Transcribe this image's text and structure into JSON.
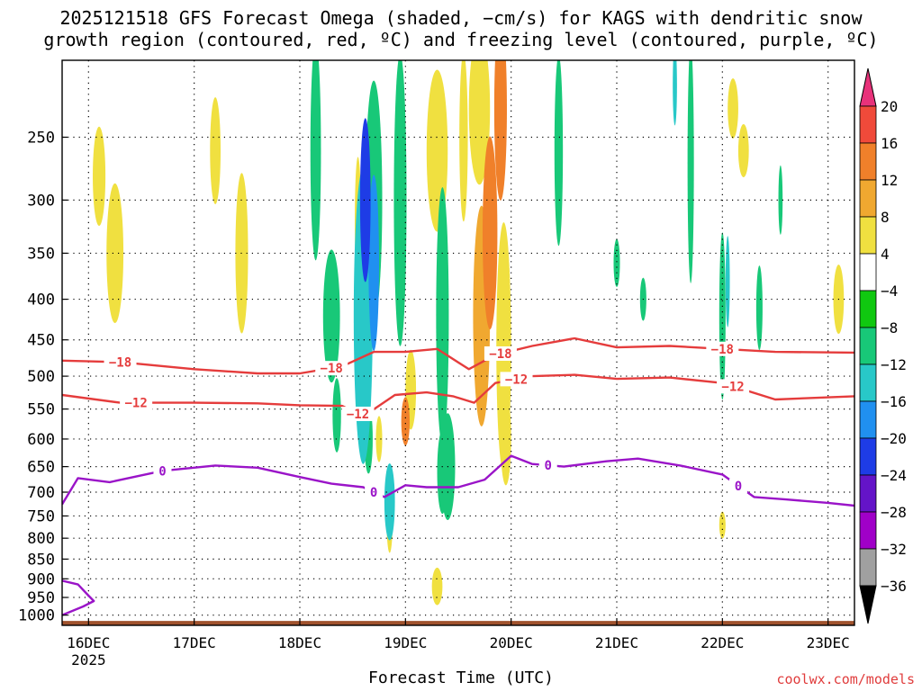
{
  "title_lines": [
    "2025121518 GFS Forecast Omega (shaded, −cm/s) for KAGS with dendritic snow",
    "growth region (contoured, red, ºC) and freezing level (contoured, purple, ºC)"
  ],
  "credit": "coolwx.com/models",
  "chart_data": {
    "type": "heatmap",
    "title": "2025121518 GFS Forecast Omega (shaded, −cm/s) for KAGS with dendritic snow growth region (contoured, red, ºC) and freezing level (contoured, purple, ºC)",
    "xlabel": "Forecast Time (UTC)",
    "ylabel": "",
    "x_range_days": [
      -0.25,
      7.25
    ],
    "x_ticks": [
      {
        "day": 0,
        "label": "16DEC",
        "sub": "2025"
      },
      {
        "day": 1,
        "label": "17DEC",
        "sub": ""
      },
      {
        "day": 2,
        "label": "18DEC",
        "sub": ""
      },
      {
        "day": 3,
        "label": "19DEC",
        "sub": ""
      },
      {
        "day": 4,
        "label": "20DEC",
        "sub": ""
      },
      {
        "day": 5,
        "label": "21DEC",
        "sub": ""
      },
      {
        "day": 6,
        "label": "22DEC",
        "sub": ""
      },
      {
        "day": 7,
        "label": "23DEC",
        "sub": ""
      }
    ],
    "y_axis": "pressure (hPa, log scale, inverted)",
    "y_range_hpa": [
      1030,
      200
    ],
    "y_ticks": [
      250,
      300,
      350,
      400,
      450,
      500,
      550,
      600,
      650,
      700,
      750,
      800,
      850,
      900,
      950,
      1000
    ],
    "grid": true,
    "colorbar": {
      "labels": [
        "20",
        "16",
        "12",
        "8",
        "4",
        "−4",
        "−8",
        "−12",
        "−16",
        "−20",
        "−24",
        "−28",
        "−32",
        "−36"
      ],
      "colors": [
        "#e8327a",
        "#f04a3a",
        "#f0802a",
        "#f0a830",
        "#f0e040",
        "#ffffff",
        "#10c810",
        "#18c878",
        "#28c8c8",
        "#2090f0",
        "#1e3ce6",
        "#6414c8",
        "#a000c8",
        "#a0a0a0",
        "#000000"
      ]
    },
    "omega_blobs": [
      {
        "day": 3.8,
        "p": 330,
        "dd": 0.07,
        "dp": 90,
        "v": 12
      },
      {
        "day": 3.9,
        "p": 230,
        "dd": 0.06,
        "dp": 60,
        "v": 14
      },
      {
        "day": 3.72,
        "p": 420,
        "dd": 0.08,
        "dp": 130,
        "v": 8
      },
      {
        "day": 3.93,
        "p": 460,
        "dd": 0.07,
        "dp": 160,
        "v": 7
      },
      {
        "day": 3.95,
        "p": 600,
        "dd": 0.05,
        "dp": 80,
        "v": 6
      },
      {
        "day": 3.0,
        "p": 570,
        "dd": 0.04,
        "dp": 40,
        "v": 14
      },
      {
        "day": 3.05,
        "p": 520,
        "dd": 0.05,
        "dp": 60,
        "v": 7
      },
      {
        "day": 3.3,
        "p": 260,
        "dd": 0.1,
        "dp": 60,
        "v": 6
      },
      {
        "day": 3.7,
        "p": 230,
        "dd": 0.1,
        "dp": 50,
        "v": 6
      },
      {
        "day": 0.25,
        "p": 350,
        "dd": 0.08,
        "dp": 70,
        "v": 5
      },
      {
        "day": 0.1,
        "p": 280,
        "dd": 0.06,
        "dp": 40,
        "v": 5
      },
      {
        "day": 1.45,
        "p": 350,
        "dd": 0.06,
        "dp": 80,
        "v": 5
      },
      {
        "day": 1.2,
        "p": 260,
        "dd": 0.05,
        "dp": 40,
        "v": 5
      },
      {
        "day": 2.55,
        "p": 320,
        "dd": 0.03,
        "dp": 60,
        "v": 5
      },
      {
        "day": 3.55,
        "p": 250,
        "dd": 0.04,
        "dp": 60,
        "v": 5
      },
      {
        "day": 2.75,
        "p": 600,
        "dd": 0.03,
        "dp": 40,
        "v": 5
      },
      {
        "day": 2.85,
        "p": 750,
        "dd": 0.03,
        "dp": 80,
        "v": 5
      },
      {
        "day": 3.3,
        "p": 920,
        "dd": 0.05,
        "dp": 50,
        "v": 5
      },
      {
        "day": 6.2,
        "p": 260,
        "dd": 0.05,
        "dp": 20,
        "v": 5
      },
      {
        "day": 6.1,
        "p": 230,
        "dd": 0.05,
        "dp": 20,
        "v": 5
      },
      {
        "day": 7.1,
        "p": 400,
        "dd": 0.05,
        "dp": 40,
        "v": 5
      },
      {
        "day": 6.0,
        "p": 770,
        "dd": 0.03,
        "dp": 30,
        "v": 5
      },
      {
        "day": 2.7,
        "p": 300,
        "dd": 0.08,
        "dp": 100,
        "v": -8
      },
      {
        "day": 2.15,
        "p": 260,
        "dd": 0.05,
        "dp": 80,
        "v": -8
      },
      {
        "day": 2.3,
        "p": 420,
        "dd": 0.08,
        "dp": 80,
        "v": -8
      },
      {
        "day": 2.95,
        "p": 300,
        "dd": 0.06,
        "dp": 120,
        "v": -9
      },
      {
        "day": 3.4,
        "p": 650,
        "dd": 0.07,
        "dp": 100,
        "v": -8
      },
      {
        "day": 3.35,
        "p": 420,
        "dd": 0.06,
        "dp": 150,
        "v": -9
      },
      {
        "day": 2.65,
        "p": 600,
        "dd": 0.04,
        "dp": 60,
        "v": -8
      },
      {
        "day": 2.6,
        "p": 420,
        "dd": 0.09,
        "dp": 170,
        "v": -13
      },
      {
        "day": 2.62,
        "p": 300,
        "dd": 0.05,
        "dp": 70,
        "v": -21
      },
      {
        "day": 2.7,
        "p": 360,
        "dd": 0.05,
        "dp": 90,
        "v": -17
      },
      {
        "day": 2.85,
        "p": 720,
        "dd": 0.05,
        "dp": 80,
        "v": -12
      },
      {
        "day": 3.35,
        "p": 660,
        "dd": 0.05,
        "dp": 80,
        "v": -11
      },
      {
        "day": 2.35,
        "p": 560,
        "dd": 0.04,
        "dp": 60,
        "v": -8
      },
      {
        "day": 4.45,
        "p": 260,
        "dd": 0.04,
        "dp": 70,
        "v": -8
      },
      {
        "day": 5.7,
        "p": 270,
        "dd": 0.03,
        "dp": 90,
        "v": -9
      },
      {
        "day": 5.55,
        "p": 215,
        "dd": 0.02,
        "dp": 25,
        "v": -13
      },
      {
        "day": 6.55,
        "p": 300,
        "dd": 0.02,
        "dp": 30,
        "v": -9
      },
      {
        "day": 6.0,
        "p": 420,
        "dd": 0.03,
        "dp": 100,
        "v": -10
      },
      {
        "day": 6.05,
        "p": 380,
        "dd": 0.02,
        "dp": 50,
        "v": -13
      },
      {
        "day": 5.25,
        "p": 400,
        "dd": 0.03,
        "dp": 25,
        "v": -8
      },
      {
        "day": 6.35,
        "p": 410,
        "dd": 0.03,
        "dp": 50,
        "v": -8
      },
      {
        "day": 5.0,
        "p": 360,
        "dd": 0.03,
        "dp": 25,
        "v": -8
      }
    ],
    "contours": [
      {
        "name": "dendritic-top",
        "label": "−18",
        "color": "#e53c3c",
        "days": [
          -0.25,
          0.3,
          1.0,
          1.6,
          2.0,
          2.4,
          2.7,
          3.0,
          3.3,
          3.6,
          3.85,
          4.2,
          4.6,
          5.0,
          5.5,
          6.0,
          6.5,
          7.25
        ],
        "p": [
          478,
          480,
          490,
          496,
          496,
          486,
          466,
          466,
          462,
          490,
          470,
          458,
          448,
          460,
          458,
          462,
          466,
          467
        ],
        "label_at": [
          0.3,
          2.3,
          3.9,
          6.0
        ]
      },
      {
        "name": "dendritic-bottom",
        "label": "−12",
        "color": "#e53c3c",
        "days": [
          -0.25,
          0.3,
          1.0,
          1.6,
          2.0,
          2.4,
          2.6,
          2.9,
          3.2,
          3.45,
          3.65,
          3.85,
          4.2,
          4.6,
          5.0,
          5.5,
          6.0,
          6.5,
          7.25
        ],
        "p": [
          528,
          540,
          540,
          541,
          544,
          545,
          562,
          528,
          524,
          530,
          540,
          510,
          500,
          498,
          504,
          502,
          510,
          535,
          530
        ],
        "label_at": [
          0.45,
          2.55,
          4.05,
          6.1
        ]
      },
      {
        "name": "freezing-level",
        "label": "0",
        "color": "#9a14c8",
        "days": [
          -0.25,
          -0.1,
          0.2,
          0.7,
          1.2,
          1.6,
          2.0,
          2.3,
          2.6,
          2.8,
          3.0,
          3.2,
          3.5,
          3.75,
          4.0,
          4.2,
          4.5,
          4.9,
          5.2,
          5.6,
          6.0,
          6.3,
          6.6,
          7.0,
          7.25
        ],
        "p": [
          725,
          672,
          680,
          658,
          648,
          652,
          670,
          683,
          690,
          710,
          686,
          690,
          690,
          675,
          630,
          645,
          650,
          640,
          635,
          648,
          665,
          710,
          715,
          722,
          728
        ],
        "label_at": [
          0.7,
          2.7,
          4.35,
          6.15
        ]
      },
      {
        "name": "freezing-level-sfc",
        "label": "",
        "color": "#9a14c8",
        "days": [
          -0.25,
          -0.1,
          0.0,
          0.05,
          -0.05,
          -0.25
        ],
        "p": [
          905,
          915,
          945,
          960,
          975,
          1000
        ],
        "label_at": []
      }
    ],
    "surface_hpa": 1017
  }
}
